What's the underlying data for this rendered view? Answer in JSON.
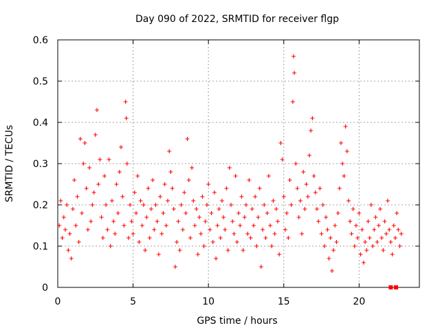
{
  "chart_data": {
    "type": "scatter",
    "title": "Day 090 of 2022, SRMTID for receiver flgp",
    "xlabel": "GPS time / hours",
    "ylabel": "SRMTID / TECUs",
    "xlim": [
      0,
      24
    ],
    "ylim": [
      0,
      0.6
    ],
    "xticks": [
      "0",
      "5",
      "10",
      "15",
      "20"
    ],
    "yticks": [
      "0",
      "0.1",
      "0.2",
      "0.3",
      "0.4",
      "0.5",
      "0.6"
    ],
    "grid": true,
    "marker": "plus",
    "color": "#ff0000",
    "series": [
      {
        "name": "SRMTID",
        "points": [
          [
            0.1,
            0.15
          ],
          [
            0.2,
            0.21
          ],
          [
            0.3,
            0.12
          ],
          [
            0.4,
            0.17
          ],
          [
            0.5,
            0.14
          ],
          [
            0.6,
            0.2
          ],
          [
            0.7,
            0.09
          ],
          [
            0.8,
            0.13
          ],
          [
            0.9,
            0.07
          ],
          [
            1.0,
            0.19
          ],
          [
            1.1,
            0.26
          ],
          [
            1.2,
            0.15
          ],
          [
            1.3,
            0.22
          ],
          [
            1.4,
            0.11
          ],
          [
            1.5,
            0.36
          ],
          [
            1.6,
            0.18
          ],
          [
            1.7,
            0.3
          ],
          [
            1.8,
            0.35
          ],
          [
            1.9,
            0.24
          ],
          [
            2.0,
            0.14
          ],
          [
            2.1,
            0.29
          ],
          [
            2.2,
            0.16
          ],
          [
            2.3,
            0.2
          ],
          [
            2.4,
            0.23
          ],
          [
            2.5,
            0.37
          ],
          [
            2.6,
            0.43
          ],
          [
            2.7,
            0.25
          ],
          [
            2.8,
            0.31
          ],
          [
            2.9,
            0.17
          ],
          [
            3.0,
            0.12
          ],
          [
            3.1,
            0.27
          ],
          [
            3.2,
            0.2
          ],
          [
            3.3,
            0.14
          ],
          [
            3.4,
            0.31
          ],
          [
            3.5,
            0.1
          ],
          [
            3.6,
            0.21
          ],
          [
            3.7,
            0.16
          ],
          [
            3.8,
            0.13
          ],
          [
            3.9,
            0.25
          ],
          [
            4.0,
            0.18
          ],
          [
            4.1,
            0.28
          ],
          [
            4.2,
            0.34
          ],
          [
            4.3,
            0.22
          ],
          [
            4.4,
            0.15
          ],
          [
            4.5,
            0.45
          ],
          [
            4.55,
            0.41
          ],
          [
            4.6,
            0.3
          ],
          [
            4.7,
            0.12
          ],
          [
            4.8,
            0.2
          ],
          [
            4.9,
            0.16
          ],
          [
            5.0,
            0.13
          ],
          [
            5.1,
            0.23
          ],
          [
            5.2,
            0.18
          ],
          [
            5.3,
            0.27
          ],
          [
            5.4,
            0.11
          ],
          [
            5.5,
            0.21
          ],
          [
            5.6,
            0.15
          ],
          [
            5.7,
            0.2
          ],
          [
            5.8,
            0.09
          ],
          [
            5.9,
            0.17
          ],
          [
            6.0,
            0.24
          ],
          [
            6.1,
            0.12
          ],
          [
            6.2,
            0.19
          ],
          [
            6.3,
            0.26
          ],
          [
            6.4,
            0.14
          ],
          [
            6.5,
            0.2
          ],
          [
            6.6,
            0.16
          ],
          [
            6.7,
            0.08
          ],
          [
            6.8,
            0.22
          ],
          [
            6.9,
            0.13
          ],
          [
            7.0,
            0.18
          ],
          [
            7.1,
            0.25
          ],
          [
            7.2,
            0.15
          ],
          [
            7.3,
            0.21
          ],
          [
            7.4,
            0.33
          ],
          [
            7.5,
            0.28
          ],
          [
            7.6,
            0.24
          ],
          [
            7.7,
            0.19
          ],
          [
            7.8,
            0.05
          ],
          [
            7.9,
            0.11
          ],
          [
            8.0,
            0.16
          ],
          [
            8.1,
            0.09
          ],
          [
            8.2,
            0.2
          ],
          [
            8.3,
            0.14
          ],
          [
            8.4,
            0.23
          ],
          [
            8.5,
            0.18
          ],
          [
            8.6,
            0.36
          ],
          [
            8.7,
            0.26
          ],
          [
            8.8,
            0.12
          ],
          [
            8.9,
            0.29
          ],
          [
            9.0,
            0.21
          ],
          [
            9.1,
            0.15
          ],
          [
            9.2,
            0.19
          ],
          [
            9.3,
            0.08
          ],
          [
            9.4,
            0.17
          ],
          [
            9.5,
            0.13
          ],
          [
            9.6,
            0.22
          ],
          [
            9.7,
            0.1
          ],
          [
            9.8,
            0.16
          ],
          [
            9.9,
            0.2
          ],
          [
            10.0,
            0.25
          ],
          [
            10.1,
            0.14
          ],
          [
            10.2,
            0.18
          ],
          [
            10.3,
            0.11
          ],
          [
            10.4,
            0.23
          ],
          [
            10.5,
            0.07
          ],
          [
            10.6,
            0.15
          ],
          [
            10.7,
            0.19
          ],
          [
            10.8,
            0.12
          ],
          [
            10.9,
            0.21
          ],
          [
            11.0,
            0.17
          ],
          [
            11.1,
            0.14
          ],
          [
            11.2,
            0.24
          ],
          [
            11.3,
            0.09
          ],
          [
            11.4,
            0.29
          ],
          [
            11.5,
            0.2
          ],
          [
            11.6,
            0.16
          ],
          [
            11.7,
            0.13
          ],
          [
            11.8,
            0.27
          ],
          [
            11.9,
            0.11
          ],
          [
            12.0,
            0.18
          ],
          [
            12.1,
            0.15
          ],
          [
            12.2,
            0.22
          ],
          [
            12.3,
            0.09
          ],
          [
            12.4,
            0.17
          ],
          [
            12.5,
            0.2
          ],
          [
            12.6,
            0.13
          ],
          [
            12.7,
            0.26
          ],
          [
            12.8,
            0.12
          ],
          [
            12.9,
            0.19
          ],
          [
            13.0,
            0.15
          ],
          [
            13.1,
            0.22
          ],
          [
            13.2,
            0.1
          ],
          [
            13.3,
            0.17
          ],
          [
            13.4,
            0.24
          ],
          [
            13.5,
            0.05
          ],
          [
            13.6,
            0.14
          ],
          [
            13.7,
            0.2
          ],
          [
            13.8,
            0.12
          ],
          [
            13.9,
            0.18
          ],
          [
            14.0,
            0.27
          ],
          [
            14.1,
            0.15
          ],
          [
            14.2,
            0.1
          ],
          [
            14.3,
            0.21
          ],
          [
            14.4,
            0.13
          ],
          [
            14.5,
            0.19
          ],
          [
            14.6,
            0.16
          ],
          [
            14.7,
            0.08
          ],
          [
            14.8,
            0.35
          ],
          [
            14.9,
            0.31
          ],
          [
            15.0,
            0.22
          ],
          [
            15.1,
            0.14
          ],
          [
            15.2,
            0.18
          ],
          [
            15.3,
            0.12
          ],
          [
            15.4,
            0.26
          ],
          [
            15.5,
            0.2
          ],
          [
            15.6,
            0.45
          ],
          [
            15.65,
            0.56
          ],
          [
            15.7,
            0.52
          ],
          [
            15.8,
            0.3
          ],
          [
            15.9,
            0.24
          ],
          [
            16.0,
            0.17
          ],
          [
            16.1,
            0.21
          ],
          [
            16.2,
            0.13
          ],
          [
            16.3,
            0.28
          ],
          [
            16.4,
            0.19
          ],
          [
            16.5,
            0.25
          ],
          [
            16.6,
            0.22
          ],
          [
            16.7,
            0.32
          ],
          [
            16.8,
            0.38
          ],
          [
            16.9,
            0.41
          ],
          [
            17.0,
            0.27
          ],
          [
            17.1,
            0.23
          ],
          [
            17.2,
            0.19
          ],
          [
            17.3,
            0.16
          ],
          [
            17.4,
            0.24
          ],
          [
            17.5,
            0.13
          ],
          [
            17.6,
            0.2
          ],
          [
            17.7,
            0.1
          ],
          [
            17.8,
            0.17
          ],
          [
            17.9,
            0.14
          ],
          [
            18.0,
            0.07
          ],
          [
            18.1,
            0.12
          ],
          [
            18.2,
            0.04
          ],
          [
            18.3,
            0.09
          ],
          [
            18.4,
            0.15
          ],
          [
            18.5,
            0.11
          ],
          [
            18.6,
            0.18
          ],
          [
            18.7,
            0.24
          ],
          [
            18.8,
            0.35
          ],
          [
            18.9,
            0.3
          ],
          [
            19.0,
            0.27
          ],
          [
            19.1,
            0.39
          ],
          [
            19.2,
            0.33
          ],
          [
            19.3,
            0.21
          ],
          [
            19.4,
            0.16
          ],
          [
            19.5,
            0.13
          ],
          [
            19.6,
            0.19
          ],
          [
            19.7,
            0.1
          ],
          [
            19.8,
            0.15
          ],
          [
            19.9,
            0.12
          ],
          [
            20.0,
            0.18
          ],
          [
            20.1,
            0.08
          ],
          [
            20.2,
            0.14
          ],
          [
            20.3,
            0.06
          ],
          [
            20.4,
            0.11
          ],
          [
            20.5,
            0.09
          ],
          [
            20.6,
            0.16
          ],
          [
            20.7,
            0.12
          ],
          [
            20.8,
            0.2
          ],
          [
            20.9,
            0.1
          ],
          [
            21.0,
            0.14
          ],
          [
            21.1,
            0.17
          ],
          [
            21.2,
            0.11
          ],
          [
            21.3,
            0.15
          ],
          [
            21.4,
            0.19
          ],
          [
            21.5,
            0.12
          ],
          [
            21.6,
            0.09
          ],
          [
            21.7,
            0.16
          ],
          [
            21.8,
            0.13
          ],
          [
            21.9,
            0.21
          ],
          [
            22.0,
            0.14
          ],
          [
            22.1,
            0.11
          ],
          [
            22.2,
            0.08
          ],
          [
            22.3,
            0.15
          ],
          [
            22.4,
            0.12
          ],
          [
            22.5,
            0.18
          ],
          [
            22.6,
            0.14
          ],
          [
            22.7,
            0.1
          ],
          [
            22.8,
            0.13
          ]
        ]
      }
    ],
    "extra_markers": [
      [
        22.1,
        0.0
      ],
      [
        22.45,
        0.0
      ]
    ]
  }
}
